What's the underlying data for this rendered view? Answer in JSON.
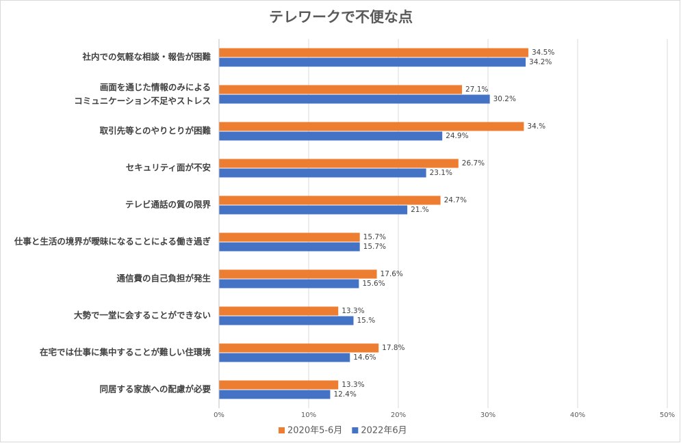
{
  "chart_data": {
    "type": "barh",
    "title": "テレワークで不便な点",
    "categories": [
      "社内での気軽な相談・報告が困難",
      "画面を通じた情報のみによる\nコミュニケーション不足やストレス",
      "取引先等とのやりとりが困難",
      "セキュリティ面が不安",
      "テレビ通話の質の限界",
      "仕事と生活の境界が曖昧になることによる働き過ぎ",
      "通信費の自己負担が発生",
      "大勢で一堂に会することができない",
      "在宅では仕事に集中することが難しい住環境",
      "同居する家族への配慮が必要"
    ],
    "series": [
      {
        "name": "2020年5-6月",
        "color": "#ed7d31",
        "values": [
          34.5,
          27.1,
          34,
          26.7,
          24.7,
          15.7,
          17.6,
          13.3,
          17.8,
          13.3
        ],
        "value_labels": [
          "34.5%",
          "27.1%",
          "34.%",
          "26.7%",
          "24.7%",
          "15.7%",
          "17.6%",
          "13.3%",
          "17.8%",
          "13.3%"
        ]
      },
      {
        "name": "2022年6月",
        "color": "#4472c4",
        "values": [
          34.2,
          30.2,
          24.9,
          23.1,
          21,
          15.7,
          15.6,
          15,
          14.6,
          12.4
        ],
        "value_labels": [
          "34.2%",
          "30.2%",
          "24.9%",
          "23.1%",
          "21.%",
          "15.7%",
          "15.6%",
          "15.%",
          "14.6%",
          "12.4%"
        ]
      }
    ],
    "xlim": [
      0,
      50
    ],
    "xticks": [
      {
        "value": 0,
        "label": "0%"
      },
      {
        "value": 10,
        "label": "10%"
      },
      {
        "value": 20,
        "label": "20%"
      },
      {
        "value": 30,
        "label": "30%"
      },
      {
        "value": 40,
        "label": "40%"
      },
      {
        "value": 50,
        "label": "50%"
      }
    ],
    "grid": true,
    "legend": "bottom"
  }
}
